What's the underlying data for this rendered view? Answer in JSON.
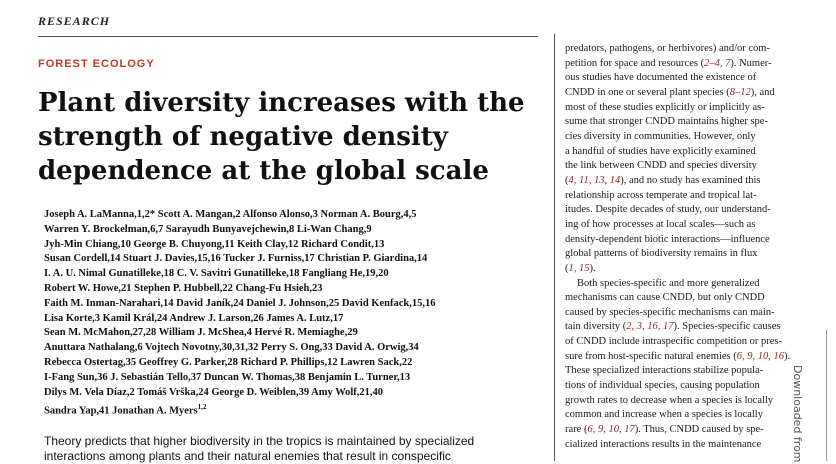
{
  "header": {
    "research_label": "RESEARCH",
    "section_label": "FOREST ECOLOGY"
  },
  "title_lines": [
    "Plant diversity increases with the",
    "strength of negative density",
    "dependence at the global scale"
  ],
  "author_lines": [
    "Joseph A. LaManna,1,2* Scott A. Mangan,2 Alfonso Alonso,3 Norman A. Bourg,4,5",
    "Warren Y. Brockelman,6,7 Sarayudh Bunyavejchewin,8 Li-Wan Chang,9",
    "Jyh-Min Chiang,10 George B. Chuyong,11 Keith Clay,12 Richard Condit,13",
    "Susan Cordell,14 Stuart J. Davies,15,16 Tucker J. Furniss,17 Christian P. Giardina,14",
    "I. A. U. Nimal Gunatilleke,18 C. V. Savitri Gunatilleke,18 Fangliang He,19,20",
    "Robert W. Howe,21 Stephen P. Hubbell,22 Chang-Fu Hsieh,23",
    "Faith M. Inman-Narahari,14 David Janík,24 Daniel J. Johnson,25 David Kenfack,15,16",
    "Lisa Korte,3 Kamil Král,24 Andrew J. Larson,26 James A. Lutz,17",
    "Sean M. McMahon,27,28 William J. McShea,4 Hervé R. Memiaghe,29",
    "Anuttara Nathalang,6 Vojtech Novotny,30,31,32 Perry S. Ong,33 David A. Orwig,34",
    "Rebecca Ostertag,35 Geoffrey G. Parker,28 Richard P. Phillips,12 Lawren Sack,22",
    "I-Fang Sun,36 J. Sebastián Tello,37 Duncan W. Thomas,38 Benjamin L. Turner,13",
    "Dilys M. Vela Díaz,2 Tomáš Vrška,24 George D. Weiblen,39 Amy Wolf,21,40",
    "Sandra Yap,41 Jonathan A. Myers1,2"
  ],
  "abstract_lines": [
    "Theory predicts that higher biodiversity in the tropics is maintained by specialized",
    "interactions among plants and their natural enemies that result in conspecific"
  ],
  "right_column_lines": [
    [
      {
        "t": "predators, pathogens, or herbivores) and/or com-"
      }
    ],
    [
      {
        "t": "petition for space and resources ("
      },
      {
        "t": "2–4, 7",
        "ref": true
      },
      {
        "t": "). Numer-"
      }
    ],
    [
      {
        "t": "ous studies have documented the existence of"
      }
    ],
    [
      {
        "t": "CNDD in one or several plant species ("
      },
      {
        "t": "8–12",
        "ref": true
      },
      {
        "t": "), and"
      }
    ],
    [
      {
        "t": "most of these studies explicitly or implicitly as-"
      }
    ],
    [
      {
        "t": "sume that stronger CNDD maintains higher spe-"
      }
    ],
    [
      {
        "t": "cies diversity in communities. However, only"
      }
    ],
    [
      {
        "t": "a handful of studies have explicitly examined"
      }
    ],
    [
      {
        "t": "the link between CNDD and species diversity"
      }
    ],
    [
      {
        "t": "("
      },
      {
        "t": "4, 11, 13, 14",
        "ref": true
      },
      {
        "t": "), and no study has examined this"
      }
    ],
    [
      {
        "t": "relationship across temperate and tropical lat-"
      }
    ],
    [
      {
        "t": "itudes. Despite decades of study, our understand-"
      }
    ],
    [
      {
        "t": "ing of how processes at local scales—such as"
      }
    ],
    [
      {
        "t": "density-dependent biotic interactions—influence"
      }
    ],
    [
      {
        "t": "global patterns of biodiversity remains in flux"
      }
    ],
    [
      {
        "t": "("
      },
      {
        "t": "1, 15",
        "ref": true
      },
      {
        "t": ")."
      }
    ],
    [
      {
        "t": "Both species-specific and more generalized",
        "indent": true
      }
    ],
    [
      {
        "t": "mechanisms can cause CNDD, but only CNDD"
      }
    ],
    [
      {
        "t": "caused by species-specific mechanisms can main-"
      }
    ],
    [
      {
        "t": "tain diversity ("
      },
      {
        "t": "2, 3, 16, 17",
        "ref": true
      },
      {
        "t": "). Species-specific causes"
      }
    ],
    [
      {
        "t": "of CNDD include intraspecific competition or pres-"
      }
    ],
    [
      {
        "t": "sure from host-specific natural enemies ("
      },
      {
        "t": "6, 9, 10, 16",
        "ref": true
      },
      {
        "t": ")."
      }
    ],
    [
      {
        "t": "These specialized interactions stabilize popula-"
      }
    ],
    [
      {
        "t": "tions of individual species, causing population"
      }
    ],
    [
      {
        "t": "growth rates to decrease when a species is locally"
      }
    ],
    [
      {
        "t": "common and increase when a species is locally"
      }
    ],
    [
      {
        "t": "rare ("
      },
      {
        "t": "6, 9, 10, 17",
        "ref": true
      },
      {
        "t": "). Thus, CNDD caused by spe-"
      }
    ],
    [
      {
        "t": "cialized interactions results in the maintenance"
      }
    ]
  ],
  "watermark": "Downloaded from"
}
